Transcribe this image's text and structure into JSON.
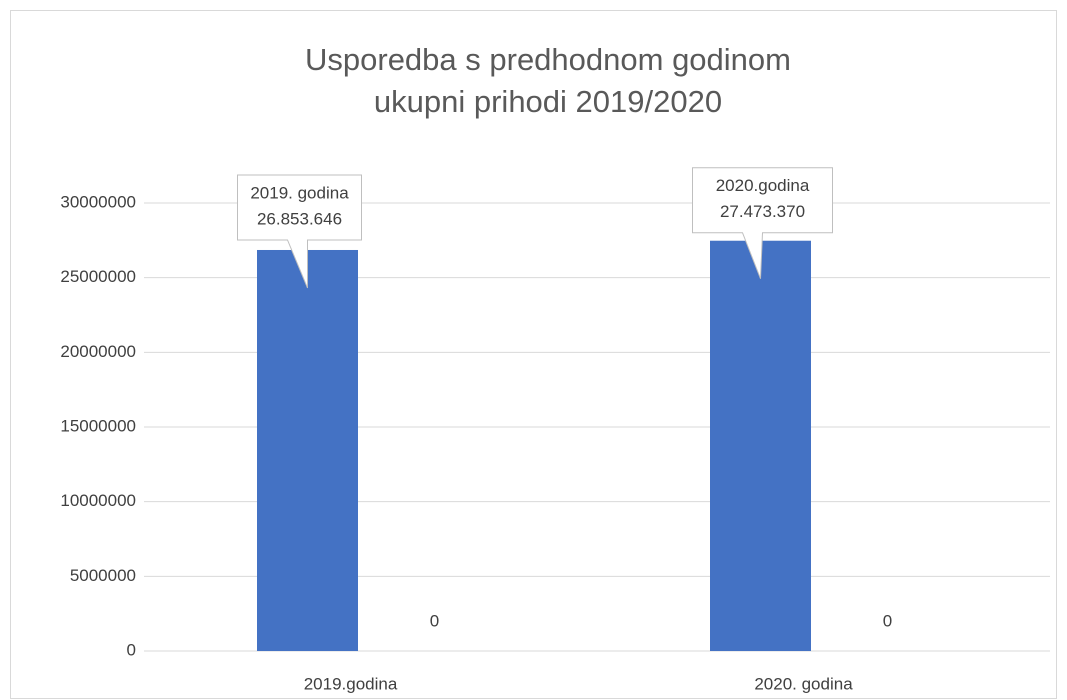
{
  "chart_data": {
    "type": "bar",
    "title": "Usporedba s predhodnom godinom",
    "subtitle": "ukupni prihodi 2019/2020",
    "categories": [
      "2019.godina",
      "2020. godina"
    ],
    "series": [
      {
        "color": "#4472c4",
        "values": [
          26853646,
          27473370
        ],
        "value_labels": [
          "26.853.646",
          "27.473.370"
        ],
        "label_names": [
          "2019. godina",
          "2020.godina"
        ]
      },
      {
        "color": "#ed7d31",
        "values": [
          0,
          0
        ]
      }
    ],
    "ylim": [
      0,
      30000000
    ],
    "yticks": [
      0,
      5000000,
      10000000,
      15000000,
      20000000,
      25000000,
      30000000
    ],
    "grid": true
  }
}
